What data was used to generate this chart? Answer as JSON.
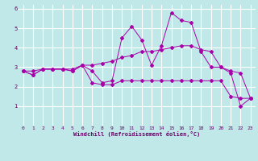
{
  "xlabel": "Windchill (Refroidissement éolien,°C)",
  "xlim": [
    -0.5,
    23.5
  ],
  "ylim": [
    0,
    6.2
  ],
  "xticks": [
    0,
    1,
    2,
    3,
    4,
    5,
    6,
    7,
    8,
    9,
    10,
    11,
    12,
    13,
    14,
    15,
    16,
    17,
    18,
    19,
    20,
    21,
    22,
    23
  ],
  "yticks": [
    1,
    2,
    3,
    4,
    5,
    6
  ],
  "background_color": "#c0e8e8",
  "grid_color": "#ffffff",
  "line_color": "#aa00aa",
  "series": [
    [
      2.8,
      2.6,
      2.9,
      2.9,
      2.9,
      2.8,
      3.1,
      2.8,
      2.2,
      2.3,
      4.5,
      5.1,
      4.4,
      3.1,
      4.1,
      5.8,
      5.4,
      5.3,
      3.8,
      3.0,
      3.0,
      2.7,
      1.0,
      1.4
    ],
    [
      2.8,
      2.6,
      2.9,
      2.9,
      2.9,
      2.8,
      3.1,
      2.2,
      2.1,
      2.1,
      2.3,
      2.3,
      2.3,
      2.3,
      2.3,
      2.3,
      2.3,
      2.3,
      2.3,
      2.3,
      2.3,
      1.5,
      1.4,
      1.4
    ],
    [
      2.8,
      2.8,
      2.9,
      2.9,
      2.9,
      2.9,
      3.1,
      3.1,
      3.2,
      3.3,
      3.5,
      3.6,
      3.8,
      3.8,
      3.9,
      4.0,
      4.1,
      4.1,
      3.9,
      3.8,
      3.0,
      2.8,
      2.7,
      1.4
    ]
  ],
  "x": [
    0,
    1,
    2,
    3,
    4,
    5,
    6,
    7,
    8,
    9,
    10,
    11,
    12,
    13,
    14,
    15,
    16,
    17,
    18,
    19,
    20,
    21,
    22,
    23
  ],
  "tick_fontsize": 4.5,
  "xlabel_fontsize": 5.0
}
